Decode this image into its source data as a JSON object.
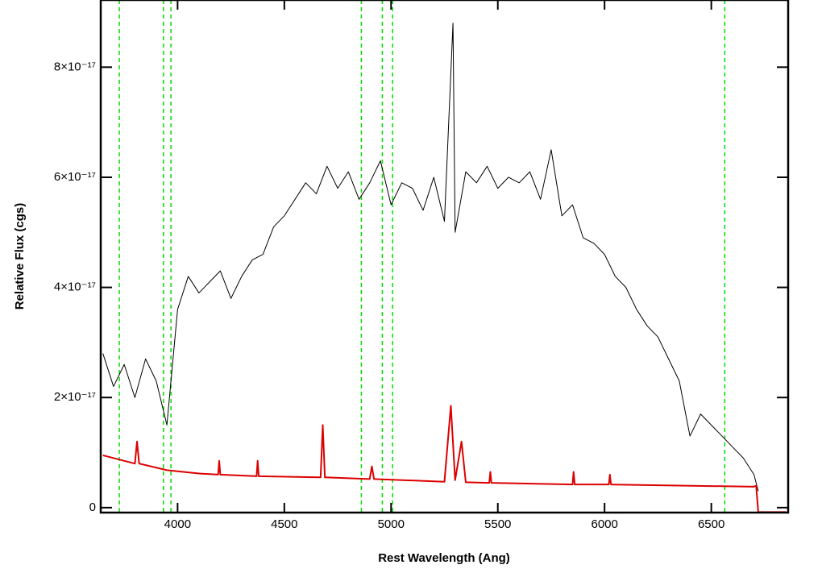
{
  "chart_data": {
    "type": "line",
    "xlabel": "Rest Wavelength (Ang)",
    "ylabel": "Relative Flux (cgs)",
    "xlim": [
      3640,
      6860
    ],
    "ylim": [
      -9e-19,
      9.22e-17
    ],
    "xticks": [
      4000,
      4500,
      5000,
      5500,
      6000,
      6500
    ],
    "yticks": [
      0,
      {
        "value": 2e-17,
        "label": "2×10⁻¹⁷"
      },
      {
        "value": 4e-17,
        "label": "4×10⁻¹⁷"
      },
      {
        "value": 6e-17,
        "label": "6×10⁻¹⁷"
      },
      {
        "value": 8e-17,
        "label": "8×10⁻¹⁷"
      }
    ],
    "vlines": {
      "color": "#00dd00",
      "x": [
        3727,
        3934,
        3969,
        4861,
        4959,
        5007,
        6563
      ]
    },
    "series": [
      {
        "color": "#000000",
        "x": [
          3650,
          3700,
          3750,
          3800,
          3850,
          3900,
          3950,
          4000,
          4050,
          4100,
          4150,
          4200,
          4250,
          4300,
          4350,
          4400,
          4450,
          4500,
          4550,
          4600,
          4650,
          4700,
          4750,
          4800,
          4850,
          4900,
          4950,
          5000,
          5050,
          5100,
          5150,
          5200,
          5250,
          5290,
          5300,
          5350,
          5400,
          5450,
          5500,
          5550,
          5600,
          5650,
          5700,
          5750,
          5800,
          5850,
          5900,
          5950,
          6000,
          6050,
          6100,
          6150,
          6200,
          6250,
          6300,
          6350,
          6400,
          6450,
          6500,
          6550,
          6600,
          6650,
          6700,
          6720
        ],
        "values": [
          2.8e-17,
          2.2e-17,
          2.6e-17,
          2e-17,
          2.7e-17,
          2.3e-17,
          1.5e-17,
          3.6e-17,
          4.2e-17,
          3.9e-17,
          4.1e-17,
          4.3e-17,
          3.8e-17,
          4.2e-17,
          4.5e-17,
          4.6e-17,
          5.1e-17,
          5.3e-17,
          5.6e-17,
          5.9e-17,
          5.7e-17,
          6.2e-17,
          5.8e-17,
          6.1e-17,
          5.6e-17,
          5.9e-17,
          6.3e-17,
          5.5e-17,
          5.9e-17,
          5.8e-17,
          5.4e-17,
          6e-17,
          5.2e-17,
          8.8e-17,
          5e-17,
          6.1e-17,
          5.9e-17,
          6.2e-17,
          5.8e-17,
          6e-17,
          5.9e-17,
          6.1e-17,
          5.6e-17,
          6.5e-17,
          5.3e-17,
          5.5e-17,
          4.9e-17,
          4.8e-17,
          4.6e-17,
          4.2e-17,
          4e-17,
          3.6e-17,
          3.3e-17,
          3.1e-17,
          2.7e-17,
          2.3e-17,
          1.3e-17,
          1.7e-17,
          1.5e-17,
          1.3e-17,
          1.1e-17,
          9e-18,
          6e-18,
          3e-18
        ]
      },
      {
        "color": "#dd0000",
        "x": [
          3650,
          3800,
          3810,
          3820,
          3950,
          4100,
          4190,
          4195,
          4200,
          4370,
          4375,
          4380,
          4670,
          4680,
          4690,
          4900,
          4910,
          4920,
          5250,
          5280,
          5300,
          5330,
          5350,
          5460,
          5465,
          5470,
          5850,
          5855,
          5860,
          6020,
          6025,
          6030,
          6700,
          6710,
          6720,
          6850
        ],
        "values": [
          9.5e-18,
          8e-18,
          1.2e-17,
          8e-18,
          6.8e-18,
          6.2e-18,
          6e-18,
          8.5e-18,
          6e-18,
          5.7e-18,
          8.5e-18,
          5.7e-18,
          5.5e-18,
          1.5e-17,
          5.5e-18,
          5.2e-18,
          7.5e-18,
          5.2e-18,
          4.7e-18,
          1.85e-17,
          5e-18,
          1.2e-17,
          4.6e-18,
          4.5e-18,
          6.5e-18,
          4.5e-18,
          4.2e-18,
          6.5e-18,
          4.2e-18,
          4.2e-18,
          6e-18,
          4.2e-18,
          3.8e-18,
          4e-18,
          -8e-19,
          -8e-19
        ]
      }
    ]
  }
}
